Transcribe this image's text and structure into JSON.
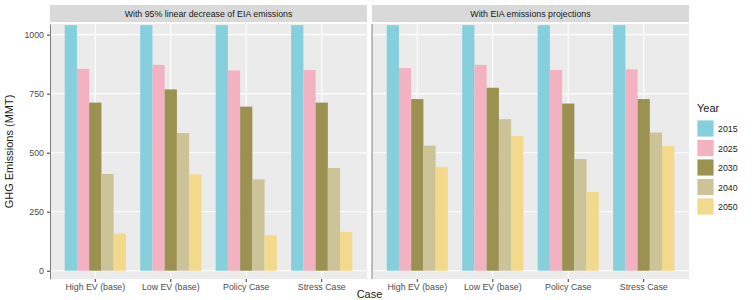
{
  "chart_data": {
    "type": "bar",
    "x_label": "Case",
    "y_label": "GHG Emissions (MMT)",
    "legend_title": "Year",
    "legend": "right",
    "grid": true,
    "categories": [
      "High EV (base)",
      "Low EV (base)",
      "Policy Case",
      "Stress Case"
    ],
    "ylim": [
      -35,
      1045
    ],
    "yticks": [
      0,
      250,
      500,
      750,
      1000
    ],
    "series": [
      {
        "name": "2015",
        "color": "#85d0dc"
      },
      {
        "name": "2025",
        "color": "#f2b2c2"
      },
      {
        "name": "2030",
        "color": "#9b9150"
      },
      {
        "name": "2040",
        "color": "#cdc398"
      },
      {
        "name": "2050",
        "color": "#f3d98c"
      }
    ],
    "panels": [
      {
        "title": "With 95% linear decrease of EIA emissions",
        "values": [
          [
            1040,
            1040,
            1040,
            1040
          ],
          [
            855,
            872,
            848,
            850
          ],
          [
            712,
            768,
            695,
            712
          ],
          [
            410,
            583,
            387,
            435
          ],
          [
            158,
            408,
            150,
            165
          ]
        ]
      },
      {
        "title": "With EIA emissions projections",
        "values": [
          [
            1040,
            1040,
            1040,
            1040
          ],
          [
            858,
            872,
            850,
            853
          ],
          [
            727,
            775,
            708,
            727
          ],
          [
            530,
            642,
            473,
            585
          ],
          [
            440,
            570,
            333,
            528
          ]
        ]
      }
    ]
  }
}
